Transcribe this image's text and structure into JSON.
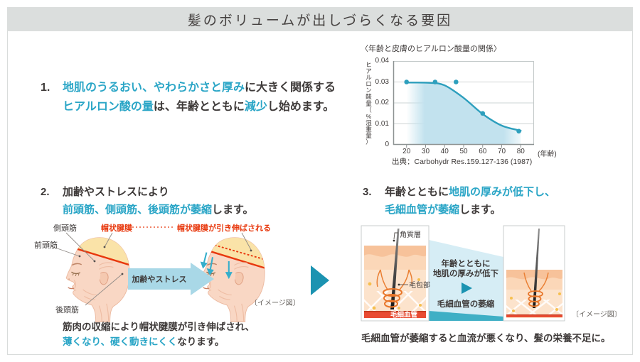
{
  "page": {
    "title": "髪のボリュームが出しづらくなる要因",
    "image_note": "〔イメージ図〕"
  },
  "colors": {
    "accent_blue": "#29a5c6",
    "accent_red": "#e8380d",
    "text_dark": "#3e3a39",
    "teal_arrow": "#1b93b1",
    "light_blue_arrow": "#a9d8e7",
    "title_bar_bg": "#dbdedd"
  },
  "section1": {
    "number": "1.",
    "l1a": "地肌のうるおい、やわらかさと厚み",
    "l1b": "に大きく関係する",
    "l2a": "ヒアルロン酸の量",
    "l2b": "は、年齢とともに",
    "l2c": "減少",
    "l2d": "し始めます。"
  },
  "chart_data": {
    "type": "line",
    "title": "〈年齢と皮膚のヒアルロン酸量の関係〉",
    "ylabel": "ヒアルロン酸量（%湿重量）",
    "xlabel_suffix": "(年齢)",
    "source": "出典：Carbohydr Res.159.127-136 (1987)",
    "x_ticks": [
      20,
      30,
      40,
      50,
      60,
      70,
      80
    ],
    "y_ticks": [
      "0",
      "0.01",
      "0.02",
      "0.03",
      "0.04"
    ],
    "xlim": [
      13,
      87
    ],
    "ylim": [
      0,
      0.04
    ],
    "points": [
      [
        20,
        0.03
      ],
      [
        35,
        0.03
      ],
      [
        46,
        0.03
      ],
      [
        60,
        0.015
      ],
      [
        79,
        0.0065
      ]
    ],
    "trend": [
      [
        20,
        0.0297
      ],
      [
        32,
        0.0296
      ],
      [
        40,
        0.0284
      ],
      [
        50,
        0.0224
      ],
      [
        60,
        0.0147
      ],
      [
        70,
        0.0092
      ],
      [
        80,
        0.0067
      ]
    ],
    "line_color": "#2d9fbd",
    "fill_color": "#c2e2ee",
    "grid": true,
    "legend": null
  },
  "section2": {
    "number": "2.",
    "heading_l1": "加齢やストレスにより",
    "heading_l2a": "前頭筋、側頭筋、後頭筋が萎縮",
    "heading_l2b": "します。",
    "labels": {
      "temporal": "側頭筋",
      "frontal": "前頭筋",
      "occipital": "後頭筋",
      "galea": "帽状腱膜",
      "galea_stretched": "帽状腱膜が引き伸ばされる",
      "arrow": "加齢やストレス"
    },
    "note_l1": "筋肉の収縮により帽状腱膜が引き伸ばされ、",
    "note_l2a": "薄くなり、硬く動きにくく",
    "note_l2b": "なります。"
  },
  "section3": {
    "number": "3.",
    "heading_l1a": "年齢とともに",
    "heading_l1b": "地肌の厚みが低下し、",
    "heading_l2a": "毛細血管が萎縮",
    "heading_l2b": "します。",
    "labels": {
      "stratum_corneum": "角質層",
      "follicle": "毛包部",
      "capillary": "毛細血管",
      "mid_l1": "年齢とともに",
      "mid_l2": "地肌の厚みが低下",
      "mid_l3": "毛細血管の萎縮"
    },
    "note": "毛細血管が萎縮すると血流が悪くなり、髪の栄養不足に。"
  }
}
